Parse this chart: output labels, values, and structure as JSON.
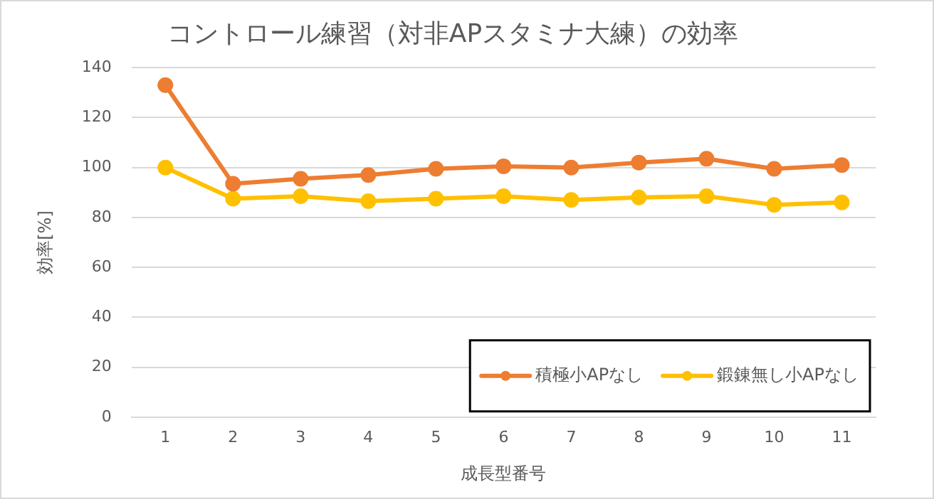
{
  "chart_data": {
    "type": "line",
    "title": "コントロール練習（対非APスタミナ大練）の効率",
    "xlabel": "成長型番号",
    "ylabel": "効率[%]",
    "categories": [
      "1",
      "2",
      "3",
      "4",
      "5",
      "6",
      "7",
      "8",
      "9",
      "10",
      "11"
    ],
    "series": [
      {
        "name": "積極小APなし",
        "color": "#ed7d31",
        "values": [
          133,
          93.5,
          95.5,
          97,
          99.5,
          100.5,
          100,
          102,
          103.5,
          99.5,
          101
        ]
      },
      {
        "name": "鍛錬無し小APなし",
        "color": "#ffc000",
        "values": [
          100,
          87.5,
          88.5,
          86.5,
          87.5,
          88.5,
          87,
          88,
          88.5,
          85,
          86
        ]
      }
    ],
    "ylim": [
      0,
      140
    ],
    "yticks": [
      0,
      20,
      40,
      60,
      80,
      100,
      120,
      140
    ],
    "grid": "y",
    "legend": "bottom right",
    "marker": "circle",
    "line_style": "solid"
  }
}
